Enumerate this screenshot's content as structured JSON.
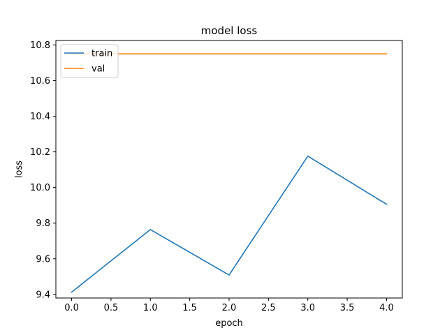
{
  "chart_data": {
    "type": "line",
    "title": "model loss",
    "xlabel": "epoch",
    "ylabel": "loss",
    "x": [
      0,
      1,
      2,
      3,
      4
    ],
    "xlim": [
      -0.2,
      4.2
    ],
    "ylim": [
      9.38,
      10.825
    ],
    "xticks": [
      0.0,
      0.5,
      1.0,
      1.5,
      2.0,
      2.5,
      3.0,
      3.5,
      4.0
    ],
    "xtick_labels": [
      "0.0",
      "0.5",
      "1.0",
      "1.5",
      "2.0",
      "2.5",
      "3.0",
      "3.5",
      "4.0"
    ],
    "yticks": [
      9.4,
      9.6,
      9.8,
      10.0,
      10.2,
      10.4,
      10.6,
      10.8
    ],
    "ytick_labels": [
      "9.4",
      "9.6",
      "9.8",
      "10.0",
      "10.2",
      "10.4",
      "10.6",
      "10.8"
    ],
    "grid": false,
    "legend_position": "top-left",
    "series": [
      {
        "name": "train",
        "color": "#1f77b4",
        "values": [
          9.413,
          9.764,
          9.509,
          10.176,
          9.906
        ]
      },
      {
        "name": "val",
        "color": "#ff7f0e",
        "values": [
          10.75,
          10.75,
          10.75,
          10.75,
          10.75
        ]
      }
    ]
  }
}
